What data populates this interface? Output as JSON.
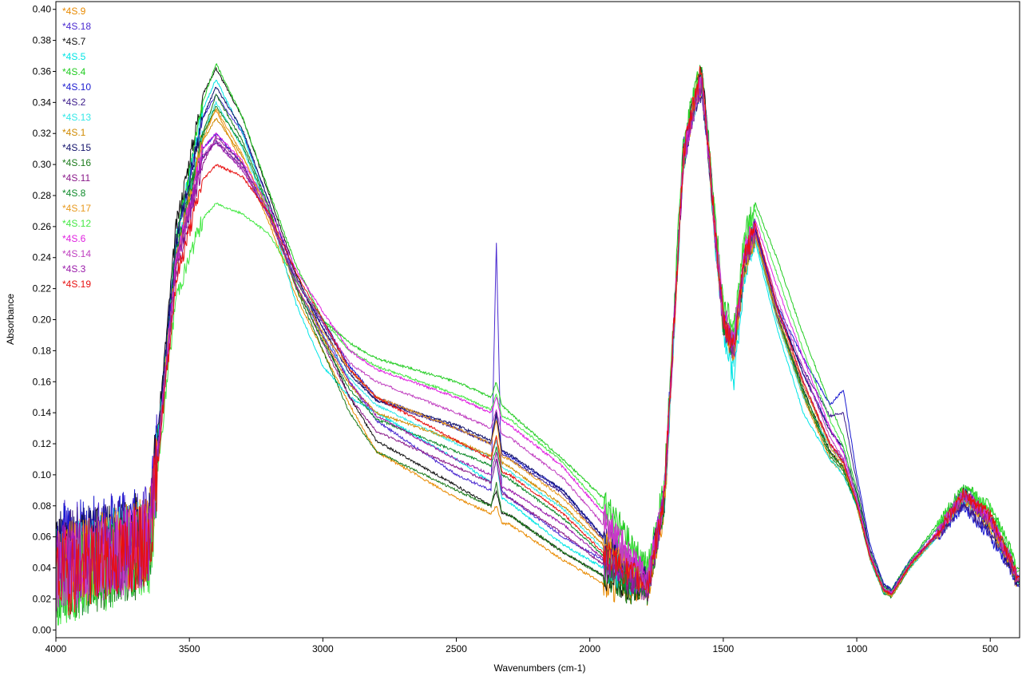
{
  "chart_data": {
    "type": "line",
    "title": "",
    "xlabel": "Wavenumbers (cm-1)",
    "ylabel": "Absorbance",
    "xlim": [
      4000,
      390
    ],
    "ylim": [
      -0.005,
      0.405
    ],
    "x_reversed": true,
    "grid": false,
    "legend_placement": "top-left inside plot",
    "x_ticks": [
      4000,
      3500,
      3000,
      2500,
      2000,
      1500,
      1000,
      500
    ],
    "x_tick_labels": [
      "4000",
      "3500",
      "3000",
      "2500",
      "2000",
      "1500",
      "1000",
      "500"
    ],
    "y_ticks": [
      0.0,
      0.02,
      0.04,
      0.06,
      0.08,
      0.1,
      0.12,
      0.14,
      0.16,
      0.18,
      0.2,
      0.22,
      0.24,
      0.26,
      0.28,
      0.3,
      0.32,
      0.34,
      0.36,
      0.38,
      0.4
    ],
    "y_tick_labels": [
      "0.00",
      "0.02",
      "0.04",
      "0.06",
      "0.08",
      "0.10",
      "0.12",
      "0.14",
      "0.16",
      "0.18",
      "0.20",
      "0.22",
      "0.24",
      "0.26",
      "0.28",
      "0.30",
      "0.32",
      "0.34",
      "0.36",
      "0.38",
      "0.40"
    ],
    "x": [
      4000,
      3800,
      3650,
      3550,
      3450,
      3400,
      3300,
      3200,
      3100,
      3000,
      2900,
      2800,
      2500,
      2370,
      2350,
      2330,
      2300,
      2100,
      1950,
      1850,
      1780,
      1720,
      1650,
      1600,
      1580,
      1560,
      1530,
      1500,
      1460,
      1420,
      1380,
      1300,
      1200,
      1100,
      1050,
      1000,
      950,
      900,
      870,
      800,
      700,
      600,
      500,
      420,
      400
    ],
    "series": [
      {
        "name": "*4S.9",
        "color": "#e88a00",
        "values": [
          0.04,
          0.05,
          0.06,
          0.24,
          0.32,
          0.335,
          0.3,
          0.262,
          0.215,
          0.18,
          0.145,
          0.115,
          0.085,
          0.075,
          0.08,
          0.069,
          0.068,
          0.045,
          0.03,
          0.025,
          0.025,
          0.08,
          0.3,
          0.35,
          0.355,
          0.32,
          0.26,
          0.2,
          0.18,
          0.235,
          0.255,
          0.2,
          0.15,
          0.11,
          0.1,
          0.08,
          0.045,
          0.025,
          0.022,
          0.04,
          0.06,
          0.085,
          0.065,
          0.04,
          0.03
        ]
      },
      {
        "name": "*4S.18",
        "color": "#4a2ad0",
        "values": [
          0.055,
          0.06,
          0.065,
          0.25,
          0.33,
          0.345,
          0.32,
          0.275,
          0.225,
          0.195,
          0.16,
          0.135,
          0.1,
          0.09,
          0.25,
          0.09,
          0.085,
          0.06,
          0.045,
          0.035,
          0.03,
          0.09,
          0.31,
          0.345,
          0.352,
          0.32,
          0.255,
          0.2,
          0.185,
          0.24,
          0.26,
          0.21,
          0.165,
          0.13,
          0.115,
          0.085,
          0.05,
          0.028,
          0.025,
          0.045,
          0.065,
          0.09,
          0.075,
          0.045,
          0.035
        ]
      },
      {
        "name": "*4S.7",
        "color": "#111111",
        "values": [
          0.045,
          0.055,
          0.065,
          0.26,
          0.345,
          0.362,
          0.33,
          0.28,
          0.23,
          0.19,
          0.15,
          0.122,
          0.093,
          0.08,
          0.09,
          0.075,
          0.074,
          0.05,
          0.035,
          0.028,
          0.028,
          0.085,
          0.305,
          0.35,
          0.358,
          0.32,
          0.258,
          0.2,
          0.182,
          0.238,
          0.258,
          0.205,
          0.155,
          0.115,
          0.105,
          0.082,
          0.048,
          0.026,
          0.023,
          0.042,
          0.062,
          0.088,
          0.07,
          0.042,
          0.032
        ]
      },
      {
        "name": "*4S.5",
        "color": "#00e5e5",
        "values": [
          0.04,
          0.05,
          0.06,
          0.25,
          0.335,
          0.355,
          0.32,
          0.27,
          0.21,
          0.17,
          0.15,
          0.14,
          0.11,
          0.095,
          0.11,
          0.085,
          0.082,
          0.055,
          0.04,
          0.032,
          0.03,
          0.085,
          0.3,
          0.345,
          0.352,
          0.318,
          0.25,
          0.19,
          0.16,
          0.23,
          0.25,
          0.195,
          0.14,
          0.11,
          0.1,
          0.08,
          0.045,
          0.024,
          0.022,
          0.04,
          0.06,
          0.085,
          0.068,
          0.04,
          0.03
        ]
      },
      {
        "name": "*4S.4",
        "color": "#22cc22",
        "values": [
          0.035,
          0.045,
          0.055,
          0.25,
          0.34,
          0.365,
          0.33,
          0.282,
          0.235,
          0.2,
          0.185,
          0.175,
          0.16,
          0.15,
          0.16,
          0.145,
          0.14,
          0.11,
          0.085,
          0.055,
          0.04,
          0.095,
          0.315,
          0.355,
          0.36,
          0.325,
          0.265,
          0.21,
          0.195,
          0.255,
          0.275,
          0.24,
          0.19,
          0.145,
          0.125,
          0.09,
          0.052,
          0.03,
          0.026,
          0.045,
          0.068,
          0.092,
          0.08,
          0.05,
          0.04
        ]
      },
      {
        "name": "*4S.10",
        "color": "#1a1ad0",
        "values": [
          0.055,
          0.06,
          0.065,
          0.24,
          0.31,
          0.32,
          0.3,
          0.268,
          0.225,
          0.2,
          0.17,
          0.15,
          0.13,
          0.12,
          0.14,
          0.115,
          0.112,
          0.09,
          0.06,
          0.04,
          0.032,
          0.09,
          0.305,
          0.345,
          0.35,
          0.318,
          0.255,
          0.2,
          0.185,
          0.24,
          0.258,
          0.21,
          0.175,
          0.145,
          0.155,
          0.1,
          0.055,
          0.03,
          0.026,
          0.045,
          0.06,
          0.08,
          0.06,
          0.038,
          0.028
        ]
      },
      {
        "name": "*4S.2",
        "color": "#3a1a8a",
        "values": [
          0.05,
          0.055,
          0.06,
          0.235,
          0.305,
          0.315,
          0.298,
          0.266,
          0.225,
          0.198,
          0.168,
          0.148,
          0.13,
          0.12,
          0.138,
          0.114,
          0.11,
          0.088,
          0.058,
          0.038,
          0.03,
          0.088,
          0.3,
          0.342,
          0.348,
          0.316,
          0.252,
          0.198,
          0.183,
          0.238,
          0.255,
          0.205,
          0.168,
          0.138,
          0.14,
          0.095,
          0.052,
          0.029,
          0.025,
          0.044,
          0.06,
          0.082,
          0.062,
          0.039,
          0.029
        ]
      },
      {
        "name": "*4S.13",
        "color": "#33e8e8",
        "values": [
          0.042,
          0.05,
          0.058,
          0.24,
          0.32,
          0.34,
          0.31,
          0.268,
          0.222,
          0.19,
          0.162,
          0.145,
          0.12,
          0.112,
          0.122,
          0.105,
          0.102,
          0.078,
          0.052,
          0.036,
          0.03,
          0.086,
          0.3,
          0.344,
          0.35,
          0.318,
          0.25,
          0.195,
          0.175,
          0.232,
          0.252,
          0.2,
          0.15,
          0.118,
          0.108,
          0.082,
          0.046,
          0.025,
          0.022,
          0.041,
          0.061,
          0.086,
          0.07,
          0.042,
          0.032
        ]
      },
      {
        "name": "*4S.1",
        "color": "#d08a00",
        "values": [
          0.04,
          0.05,
          0.06,
          0.235,
          0.315,
          0.33,
          0.305,
          0.268,
          0.22,
          0.188,
          0.158,
          0.14,
          0.122,
          0.112,
          0.125,
          0.108,
          0.105,
          0.08,
          0.055,
          0.038,
          0.03,
          0.086,
          0.302,
          0.346,
          0.352,
          0.318,
          0.252,
          0.196,
          0.178,
          0.234,
          0.254,
          0.202,
          0.152,
          0.114,
          0.104,
          0.08,
          0.046,
          0.025,
          0.022,
          0.041,
          0.061,
          0.086,
          0.068,
          0.041,
          0.031
        ]
      },
      {
        "name": "*4S.15",
        "color": "#10106a",
        "values": [
          0.048,
          0.055,
          0.062,
          0.25,
          0.33,
          0.35,
          0.322,
          0.275,
          0.228,
          0.195,
          0.165,
          0.148,
          0.132,
          0.122,
          0.14,
          0.116,
          0.113,
          0.09,
          0.06,
          0.04,
          0.032,
          0.088,
          0.305,
          0.348,
          0.354,
          0.32,
          0.256,
          0.2,
          0.184,
          0.24,
          0.258,
          0.208,
          0.165,
          0.128,
          0.118,
          0.088,
          0.05,
          0.028,
          0.024,
          0.043,
          0.062,
          0.088,
          0.068,
          0.041,
          0.031
        ]
      },
      {
        "name": "*4S.16",
        "color": "#1a7a1a",
        "values": [
          0.03,
          0.04,
          0.05,
          0.24,
          0.32,
          0.345,
          0.315,
          0.272,
          0.22,
          0.18,
          0.14,
          0.115,
          0.09,
          0.08,
          0.095,
          0.076,
          0.074,
          0.05,
          0.035,
          0.026,
          0.026,
          0.084,
          0.302,
          0.348,
          0.356,
          0.32,
          0.256,
          0.198,
          0.18,
          0.236,
          0.256,
          0.204,
          0.152,
          0.112,
          0.102,
          0.08,
          0.046,
          0.024,
          0.021,
          0.041,
          0.062,
          0.088,
          0.072,
          0.044,
          0.034
        ]
      },
      {
        "name": "*4S.11",
        "color": "#8a1a8a",
        "values": [
          0.04,
          0.05,
          0.058,
          0.23,
          0.3,
          0.318,
          0.3,
          0.268,
          0.222,
          0.185,
          0.15,
          0.128,
          0.105,
          0.095,
          0.11,
          0.088,
          0.085,
          0.062,
          0.042,
          0.032,
          0.028,
          0.085,
          0.3,
          0.344,
          0.35,
          0.317,
          0.252,
          0.196,
          0.18,
          0.236,
          0.255,
          0.203,
          0.158,
          0.12,
          0.11,
          0.083,
          0.047,
          0.026,
          0.023,
          0.042,
          0.061,
          0.086,
          0.07,
          0.042,
          0.032
        ]
      },
      {
        "name": "*4S.8",
        "color": "#0e8a2a",
        "values": [
          0.032,
          0.042,
          0.052,
          0.24,
          0.318,
          0.338,
          0.312,
          0.27,
          0.222,
          0.186,
          0.155,
          0.136,
          0.115,
          0.106,
          0.118,
          0.1,
          0.097,
          0.072,
          0.048,
          0.034,
          0.028,
          0.085,
          0.301,
          0.346,
          0.353,
          0.319,
          0.254,
          0.197,
          0.18,
          0.236,
          0.256,
          0.204,
          0.154,
          0.114,
          0.104,
          0.081,
          0.046,
          0.025,
          0.022,
          0.041,
          0.062,
          0.087,
          0.071,
          0.043,
          0.033
        ]
      },
      {
        "name": "*4S.17",
        "color": "#e89a20",
        "values": [
          0.038,
          0.048,
          0.058,
          0.238,
          0.316,
          0.336,
          0.306,
          0.265,
          0.222,
          0.192,
          0.168,
          0.15,
          0.13,
          0.12,
          0.135,
          0.112,
          0.11,
          0.085,
          0.058,
          0.04,
          0.031,
          0.087,
          0.303,
          0.347,
          0.352,
          0.318,
          0.253,
          0.197,
          0.18,
          0.236,
          0.255,
          0.205,
          0.158,
          0.118,
          0.106,
          0.081,
          0.046,
          0.025,
          0.022,
          0.041,
          0.061,
          0.086,
          0.069,
          0.042,
          0.032
        ]
      },
      {
        "name": "*4S.12",
        "color": "#44e844",
        "values": [
          0.03,
          0.04,
          0.05,
          0.215,
          0.265,
          0.275,
          0.268,
          0.255,
          0.225,
          0.2,
          0.18,
          0.17,
          0.152,
          0.142,
          0.152,
          0.138,
          0.136,
          0.108,
          0.078,
          0.05,
          0.036,
          0.09,
          0.308,
          0.35,
          0.355,
          0.322,
          0.262,
          0.208,
          0.192,
          0.25,
          0.27,
          0.23,
          0.18,
          0.135,
          0.118,
          0.086,
          0.05,
          0.028,
          0.024,
          0.044,
          0.066,
          0.09,
          0.078,
          0.048,
          0.038
        ]
      },
      {
        "name": "*4S.6",
        "color": "#e020e0",
        "values": [
          0.038,
          0.048,
          0.058,
          0.238,
          0.31,
          0.32,
          0.302,
          0.272,
          0.232,
          0.205,
          0.18,
          0.168,
          0.15,
          0.14,
          0.15,
          0.135,
          0.132,
          0.105,
          0.075,
          0.048,
          0.034,
          0.088,
          0.305,
          0.348,
          0.354,
          0.32,
          0.258,
          0.204,
          0.188,
          0.244,
          0.264,
          0.222,
          0.175,
          0.13,
          0.114,
          0.085,
          0.049,
          0.027,
          0.024,
          0.043,
          0.063,
          0.088,
          0.072,
          0.044,
          0.034
        ]
      },
      {
        "name": "*4S.14",
        "color": "#c040c0",
        "values": [
          0.036,
          0.046,
          0.056,
          0.236,
          0.306,
          0.316,
          0.298,
          0.268,
          0.226,
          0.198,
          0.172,
          0.16,
          0.14,
          0.13,
          0.142,
          0.126,
          0.124,
          0.098,
          0.068,
          0.044,
          0.032,
          0.087,
          0.303,
          0.346,
          0.352,
          0.319,
          0.255,
          0.2,
          0.184,
          0.24,
          0.26,
          0.214,
          0.168,
          0.124,
          0.11,
          0.083,
          0.048,
          0.026,
          0.023,
          0.042,
          0.062,
          0.087,
          0.071,
          0.043,
          0.033
        ]
      },
      {
        "name": "*4S.3",
        "color": "#9a1aaa",
        "values": [
          0.04,
          0.05,
          0.058,
          0.236,
          0.304,
          0.314,
          0.296,
          0.266,
          0.222,
          0.19,
          0.16,
          0.138,
          0.11,
          0.1,
          0.115,
          0.092,
          0.09,
          0.068,
          0.046,
          0.034,
          0.029,
          0.086,
          0.301,
          0.345,
          0.351,
          0.318,
          0.253,
          0.198,
          0.182,
          0.238,
          0.257,
          0.208,
          0.16,
          0.12,
          0.108,
          0.082,
          0.047,
          0.026,
          0.023,
          0.042,
          0.061,
          0.086,
          0.07,
          0.042,
          0.032
        ]
      },
      {
        "name": "*4S.19",
        "color": "#e81010",
        "values": [
          0.035,
          0.045,
          0.055,
          0.225,
          0.29,
          0.3,
          0.292,
          0.268,
          0.23,
          0.2,
          0.168,
          0.15,
          0.122,
          0.11,
          0.125,
          0.102,
          0.1,
          0.075,
          0.05,
          0.036,
          0.03,
          0.088,
          0.305,
          0.35,
          0.362,
          0.32,
          0.258,
          0.2,
          0.182,
          0.24,
          0.262,
          0.21,
          0.16,
          0.12,
          0.108,
          0.082,
          0.047,
          0.026,
          0.023,
          0.042,
          0.062,
          0.088,
          0.074,
          0.044,
          0.034
        ]
      }
    ]
  }
}
